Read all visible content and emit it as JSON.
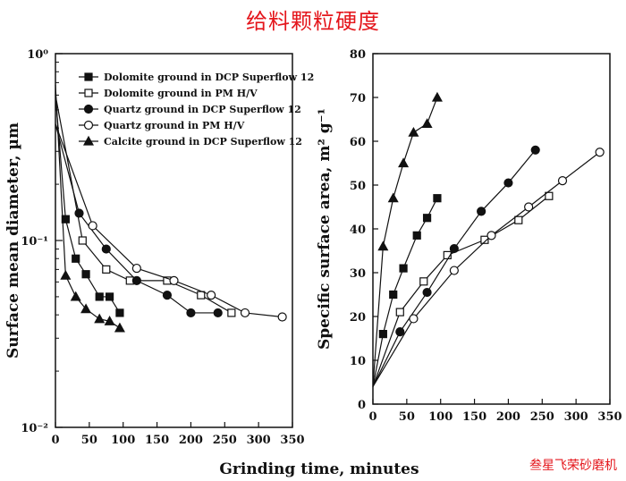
{
  "page_title": "给料颗粒硬度",
  "watermark": "叁星飞荣砂磨机",
  "chart_data": [
    {
      "type": "line",
      "ylabel": "Surface mean diameter, µm",
      "yscale": "log",
      "xlim": [
        0,
        350
      ],
      "ylim": [
        0.01,
        1
      ],
      "x_ticks": [
        "0",
        "50",
        "100",
        "150",
        "200",
        "250",
        "300",
        "350"
      ],
      "y_ticks": [
        {
          "value": 1,
          "label": "10⁰"
        },
        {
          "value": 0.1,
          "label": "10⁻¹"
        },
        {
          "value": 0.01,
          "label": "10⁻²"
        }
      ],
      "legend_position": "top-right",
      "series": [
        {
          "name": "Dolomite ground in DCP Superflow 12",
          "marker": "square-filled",
          "x": [
            0,
            15,
            30,
            45,
            65,
            80,
            95
          ],
          "y": [
            0.6,
            0.13,
            0.08,
            0.066,
            0.05,
            0.05,
            0.041
          ]
        },
        {
          "name": "Dolomite ground in PM H/V",
          "marker": "square-open",
          "x": [
            0,
            40,
            75,
            110,
            165,
            215,
            260
          ],
          "y": [
            0.6,
            0.1,
            0.07,
            0.061,
            0.061,
            0.051,
            0.041
          ]
        },
        {
          "name": "Quartz ground in DCP Superflow 12",
          "marker": "circle-filled",
          "x": [
            0,
            35,
            75,
            120,
            165,
            200,
            240
          ],
          "y": [
            0.42,
            0.14,
            0.09,
            0.061,
            0.051,
            0.041,
            0.041
          ]
        },
        {
          "name": "Quartz ground in PM H/V",
          "marker": "circle-open",
          "x": [
            0,
            55,
            120,
            175,
            230,
            280,
            335
          ],
          "y": [
            0.42,
            0.12,
            0.071,
            0.061,
            0.051,
            0.041,
            0.039
          ]
        },
        {
          "name": "Calcite ground in DCP Superflow 12",
          "marker": "triangle-filled",
          "x": [
            0,
            15,
            30,
            45,
            65,
            80,
            95
          ],
          "y": [
            0.68,
            0.065,
            0.05,
            0.043,
            0.038,
            0.037,
            0.034
          ]
        }
      ]
    },
    {
      "type": "line",
      "xlabel": "Grinding time, minutes",
      "ylabel": "Specific surface area, m² g⁻¹",
      "xlim": [
        0,
        350
      ],
      "ylim": [
        0,
        80
      ],
      "x_ticks": [
        "0",
        "50",
        "100",
        "150",
        "200",
        "250",
        "300",
        "350"
      ],
      "y_ticks": [
        "0",
        "10",
        "20",
        "30",
        "40",
        "50",
        "60",
        "70",
        "80"
      ],
      "series": [
        {
          "name": "Dolomite ground in DCP Superflow 12",
          "marker": "square-filled",
          "x": [
            0,
            15,
            30,
            45,
            65,
            80,
            95
          ],
          "y": [
            4,
            16,
            25,
            31,
            38.5,
            42.5,
            47
          ]
        },
        {
          "name": "Dolomite ground in PM H/V",
          "marker": "square-open",
          "x": [
            0,
            40,
            75,
            110,
            165,
            215,
            260
          ],
          "y": [
            4,
            21,
            28,
            34,
            37.5,
            42,
            47.5
          ]
        },
        {
          "name": "Quartz ground in DCP Superflow 12",
          "marker": "circle-filled",
          "x": [
            0,
            40,
            80,
            120,
            160,
            200,
            240
          ],
          "y": [
            4,
            16.5,
            25.5,
            35.5,
            44,
            50.5,
            58
          ]
        },
        {
          "name": "Quartz ground in PM H/V",
          "marker": "circle-open",
          "x": [
            0,
            60,
            120,
            175,
            230,
            280,
            335
          ],
          "y": [
            4,
            19.5,
            30.5,
            38.5,
            45,
            51,
            57.5
          ]
        },
        {
          "name": "Calcite ground in DCP Superflow 12",
          "marker": "triangle-filled",
          "x": [
            0,
            15,
            30,
            45,
            60,
            80,
            95
          ],
          "y": [
            4,
            36,
            47,
            55,
            62,
            64,
            70
          ]
        }
      ]
    }
  ]
}
